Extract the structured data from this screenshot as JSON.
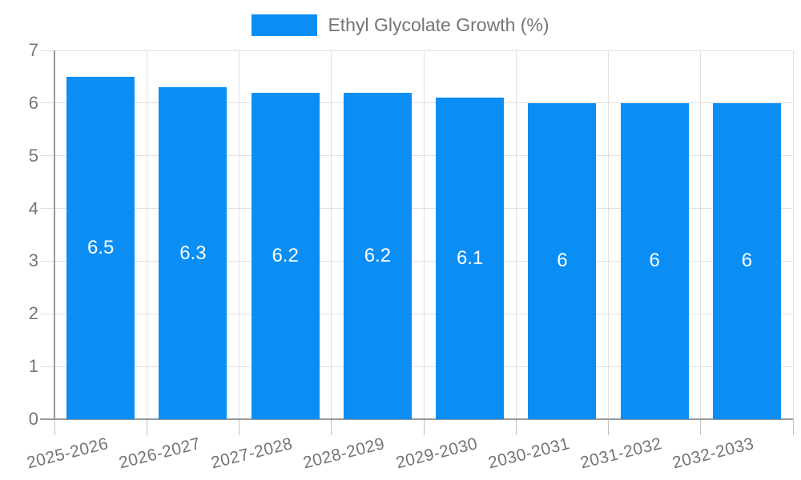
{
  "chart_data": {
    "type": "bar",
    "legend": "Ethyl Glycolate Growth (%)",
    "legend_position": "top-center",
    "categories": [
      "2025-2026",
      "2026-2027",
      "2027-2028",
      "2028-2029",
      "2029-2030",
      "2030-2031",
      "2031-2032",
      "2032-2033"
    ],
    "values": [
      6.5,
      6.3,
      6.2,
      6.2,
      6.1,
      6,
      6,
      6
    ],
    "bar_labels": [
      "6.5",
      "6.3",
      "6.2",
      "6.2",
      "6.1",
      "6",
      "6",
      "6"
    ],
    "ylim": [
      0,
      7
    ],
    "yticks": [
      0,
      1,
      2,
      3,
      4,
      5,
      6,
      7
    ],
    "grid": true,
    "x_tick_rotation_deg": -14,
    "colors": {
      "bar": "#0a8ef4",
      "grid": "#e0e0e0",
      "axis": "#999999",
      "tick": "#c0c0c0",
      "axis_label": "#757575",
      "value_label": "#ffffff",
      "legend_text": "#757575",
      "background": "#ffffff"
    }
  }
}
